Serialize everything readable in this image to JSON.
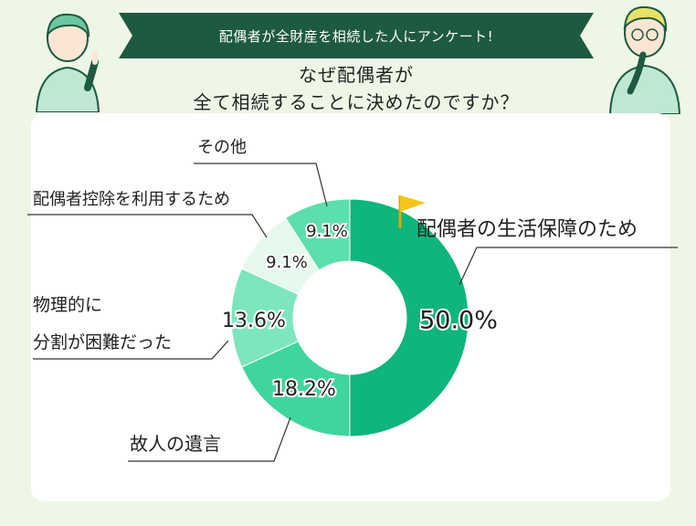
{
  "banner": {
    "text": "配偶者が全財産を相続した人にアンケート!"
  },
  "question": {
    "line1": "なぜ配偶者が",
    "line2": "全て相続することに決めたのですか？"
  },
  "colors": {
    "dark_green": "#1e5a42",
    "page_bg": "#eef7e6",
    "flag": "#f5c518"
  },
  "chart_data": {
    "type": "pie",
    "donut": true,
    "unit": "%",
    "slices": [
      {
        "label": "配偶者の生活保障のため",
        "value": 50.0,
        "display": "50.0%",
        "color": "#0fb57b"
      },
      {
        "label": "故人の遺言",
        "value": 18.2,
        "display": "18.2%",
        "color": "#3fd69e"
      },
      {
        "label": "物理的に\n分割が困難だった",
        "label_lines": [
          "物理的に",
          "分割が困難だった"
        ],
        "value": 13.6,
        "display": "13.6%",
        "color": "#7ee6bd"
      },
      {
        "label": "配偶者控除を利用するため",
        "value": 9.1,
        "display": "9.1%",
        "color": "#e6f9ef"
      },
      {
        "label": "その他",
        "value": 9.1,
        "display": "9.1%",
        "color": "#5cdfad"
      }
    ]
  }
}
